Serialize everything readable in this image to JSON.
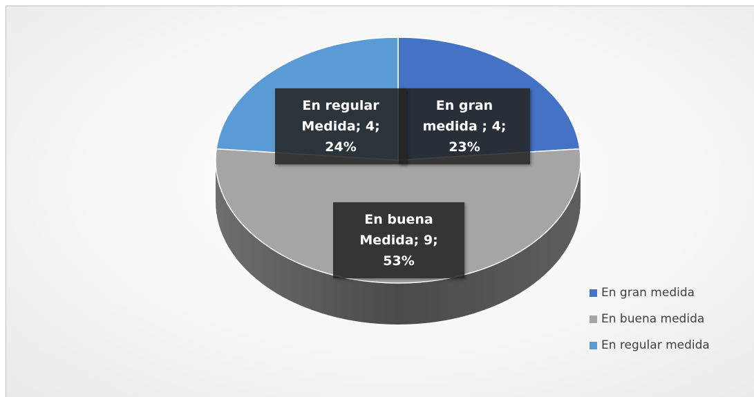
{
  "chart_data": {
    "type": "pie3d",
    "categories": [
      "En gran medida",
      "En buena medida",
      "En regular medida"
    ],
    "values": [
      4,
      9,
      4
    ],
    "value_labels": [
      "En gran medida ; 4; 23%",
      "En buena Medida; 9; 53%",
      "En regular Medida; 4; 24%"
    ],
    "colors": [
      "#4472c4",
      "#a5a5a5",
      "#5b9bd5"
    ],
    "legend": "bottom-right"
  }
}
